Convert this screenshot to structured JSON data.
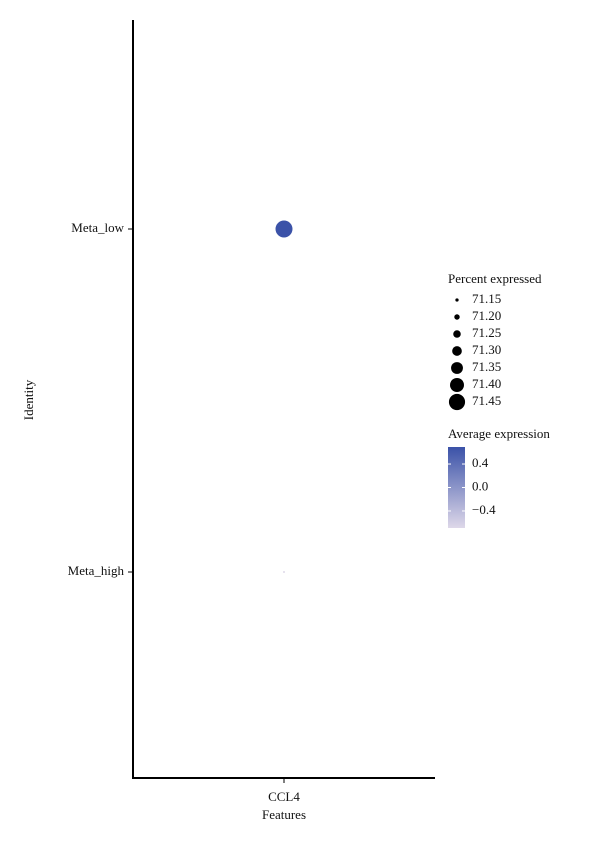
{
  "chart_data": {
    "type": "dot",
    "xlabel": "Features",
    "ylabel": "Identity",
    "x_categories": [
      "CCL4"
    ],
    "y_categories": [
      "Meta_low",
      "Meta_high"
    ],
    "average_expression": [
      0.69,
      -0.69
    ],
    "percent_expressed": [
      71.47,
      71.12
    ],
    "size_legend": {
      "title": "Percent expressed",
      "ticks": [
        71.15,
        {
          "value": 71.2,
          "label": "71.20"
        },
        71.25,
        {
          "value": 71.3,
          "label": "71.30"
        },
        71.35,
        {
          "value": 71.4,
          "label": "71.40"
        },
        71.45
      ]
    },
    "sizelim": [
      71.12,
      71.47
    ],
    "color_legend": {
      "title": "Average expression",
      "ticks": [
        0.4,
        {
          "value": 0,
          "label": "0.0"
        },
        {
          "value": -0.4,
          "label": "−0.4"
        }
      ],
      "colors": [
        "#ded8e9",
        "#3b52a8"
      ]
    },
    "colorlim": [
      -0.69,
      0.69
    ]
  }
}
